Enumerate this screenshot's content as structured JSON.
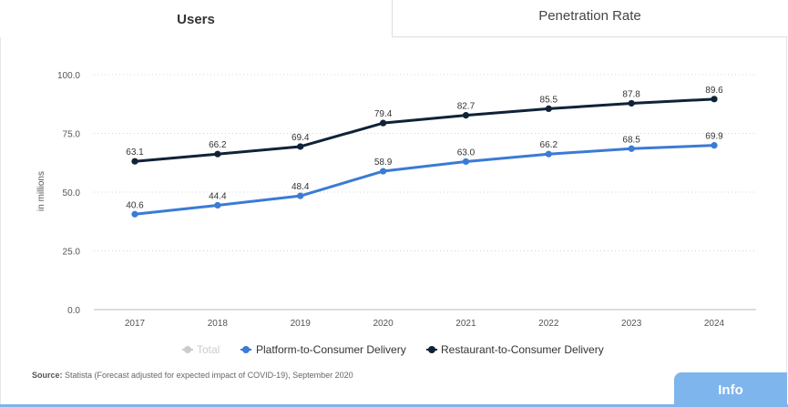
{
  "tabs": {
    "users": "Users",
    "penetration": "Penetration Rate"
  },
  "chart_data": {
    "type": "line",
    "x": [
      "2017",
      "2018",
      "2019",
      "2020",
      "2021",
      "2022",
      "2023",
      "2024"
    ],
    "ylabel": "in millions",
    "ylim": [
      0,
      100
    ],
    "yticks": [
      "0.0",
      "25.0",
      "50.0",
      "75.0",
      "100.0"
    ],
    "ytick_values": [
      0,
      25,
      50,
      75,
      100
    ],
    "grid": true,
    "legend_position": "bottom-center",
    "series": [
      {
        "name": "Total",
        "values": null,
        "color": "#cccccc",
        "visible": false
      },
      {
        "name": "Platform-to-Consumer Delivery",
        "values": [
          40.6,
          44.4,
          48.4,
          58.9,
          63.0,
          66.2,
          68.5,
          69.9
        ],
        "labels": [
          "40.6",
          "44.4",
          "48.4",
          "58.9",
          "63.0",
          "66.2",
          "68.5",
          "69.9"
        ],
        "color": "#3a7bd5",
        "visible": true
      },
      {
        "name": "Restaurant-to-Consumer Delivery",
        "values": [
          63.1,
          66.2,
          69.4,
          79.4,
          82.7,
          85.5,
          87.8,
          89.6
        ],
        "labels": [
          "63.1",
          "66.2",
          "69.4",
          "79.4",
          "82.7",
          "85.5",
          "87.8",
          "89.6"
        ],
        "color": "#0f2238",
        "visible": true
      }
    ]
  },
  "source": {
    "label": "Source:",
    "text": "Statista (Forecast adjusted for expected impact of COVID-19), September 2020"
  },
  "info": {
    "label": "Info"
  }
}
